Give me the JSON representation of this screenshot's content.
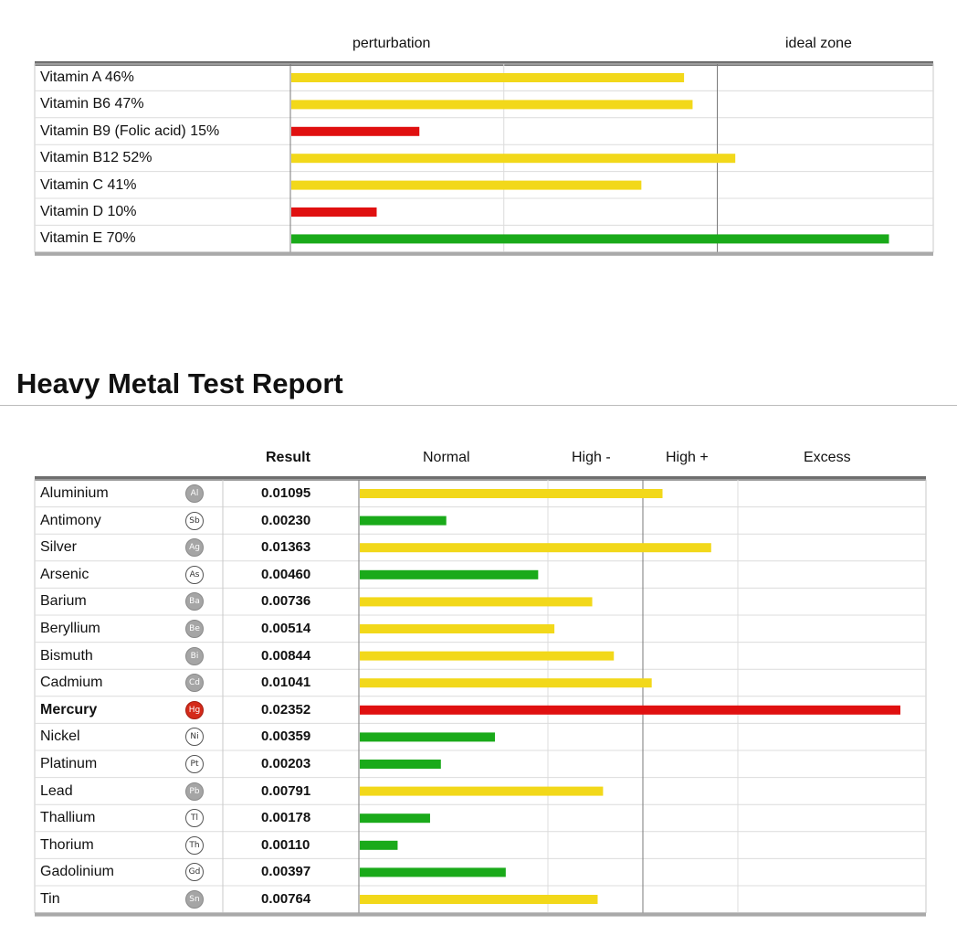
{
  "vitamins": {
    "headers": {
      "perturbation": "perturbation",
      "ideal": "ideal zone"
    },
    "chart_data": {
      "type": "bar",
      "orientation": "horizontal",
      "categories": [
        "Vitamin A 46%",
        "Vitamin B6 47%",
        "Vitamin B9 (Folic acid) 15%",
        "Vitamin B12 52%",
        "Vitamin C 41%",
        "Vitamin D 10%",
        "Vitamin E 70%"
      ],
      "values": [
        46,
        47,
        15,
        52,
        41,
        10,
        70
      ],
      "bar_colors": [
        "#f2d81a",
        "#f2d81a",
        "#e01010",
        "#f2d81a",
        "#f2d81a",
        "#e01010",
        "#1aaa1a"
      ],
      "zones": [
        "perturbation",
        "ideal zone"
      ],
      "xlim": [
        0,
        100
      ],
      "grid": true
    }
  },
  "heavy_metals": {
    "title": "Heavy Metal Test Report",
    "headers": {
      "result": "Result",
      "normal": "Normal",
      "high_minus": "High -",
      "high_plus": "High +",
      "excess": "Excess"
    },
    "chart_data": {
      "type": "bar",
      "orientation": "horizontal",
      "categories": [
        "Aluminium",
        "Antimony",
        "Silver",
        "Arsenic",
        "Barium",
        "Beryllium",
        "Bismuth",
        "Cadmium",
        "Mercury",
        "Nickel",
        "Platinum",
        "Lead",
        "Thallium",
        "Thorium",
        "Gadolinium",
        "Tin"
      ],
      "symbols": [
        "Al",
        "Sb",
        "Ag",
        "As",
        "Ba",
        "Be",
        "Bi",
        "Cd",
        "Hg",
        "Ni",
        "Pt",
        "Pb",
        "Tl",
        "Th",
        "Gd",
        "Sn"
      ],
      "symbol_styles": [
        "filled",
        "outline",
        "filled",
        "outline",
        "filled",
        "filled",
        "filled",
        "filled",
        "alert",
        "outline",
        "outline",
        "filled",
        "outline",
        "outline",
        "outline",
        "filled"
      ],
      "results": [
        "0.01095",
        "0.00230",
        "0.01363",
        "0.00460",
        "0.00736",
        "0.00514",
        "0.00844",
        "0.01041",
        "0.02352",
        "0.00359",
        "0.00203",
        "0.00791",
        "0.00178",
        "0.00110",
        "0.00397",
        "0.00764"
      ],
      "values": [
        0.01095,
        0.0023,
        0.01363,
        0.0046,
        0.00736,
        0.00514,
        0.00844,
        0.01041,
        0.02352,
        0.00359,
        0.00203,
        0.00791,
        0.00178,
        0.0011,
        0.00397,
        0.00764
      ],
      "bar_fraction": [
        0.56,
        0.16,
        0.65,
        0.33,
        0.43,
        0.36,
        0.47,
        0.54,
        1.0,
        0.25,
        0.15,
        0.45,
        0.13,
        0.07,
        0.27,
        0.44
      ],
      "bar_colors": [
        "#f2d81a",
        "#1aaa1a",
        "#f2d81a",
        "#1aaa1a",
        "#f2d81a",
        "#f2d81a",
        "#f2d81a",
        "#f2d81a",
        "#e01010",
        "#1aaa1a",
        "#1aaa1a",
        "#f2d81a",
        "#1aaa1a",
        "#1aaa1a",
        "#1aaa1a",
        "#f2d81a"
      ],
      "highlight": "Mercury",
      "zones": [
        "Normal",
        "High -",
        "High +",
        "Excess"
      ],
      "grid": true
    }
  }
}
